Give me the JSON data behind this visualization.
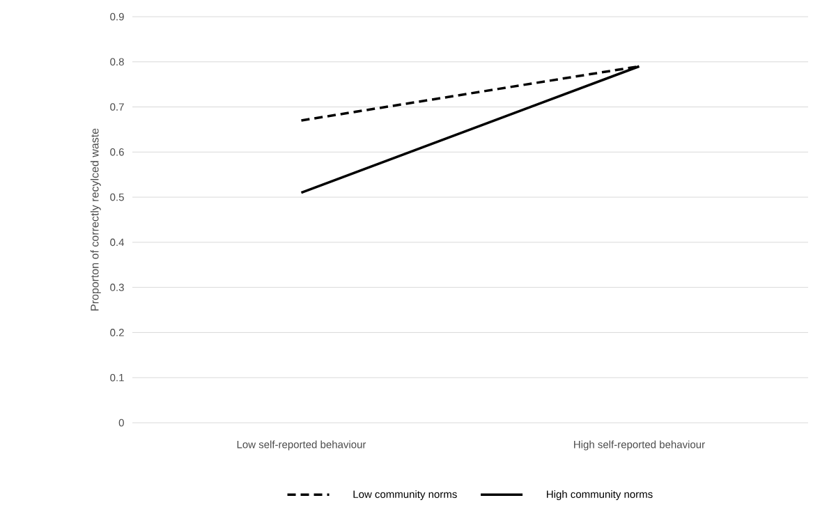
{
  "chart_data": {
    "type": "line",
    "ylabel": "Proporton of correctly recylced waste",
    "categories": [
      "Low self-reported behaviour",
      "High self-reported behaviour"
    ],
    "series": [
      {
        "name": "Low community norms",
        "color": "#000000",
        "line_style": "dashed",
        "values": [
          0.67,
          0.79
        ]
      },
      {
        "name": "High community norms",
        "color": "#000000",
        "line_style": "solid",
        "values": [
          0.51,
          0.79
        ]
      }
    ],
    "ylim": [
      0,
      0.9
    ],
    "yticks": [
      0,
      0.1,
      0.2,
      0.3,
      0.4,
      0.5,
      0.6,
      0.7,
      0.8,
      0.9
    ],
    "grid": "y",
    "legend": "bottom",
    "marker": "none"
  }
}
